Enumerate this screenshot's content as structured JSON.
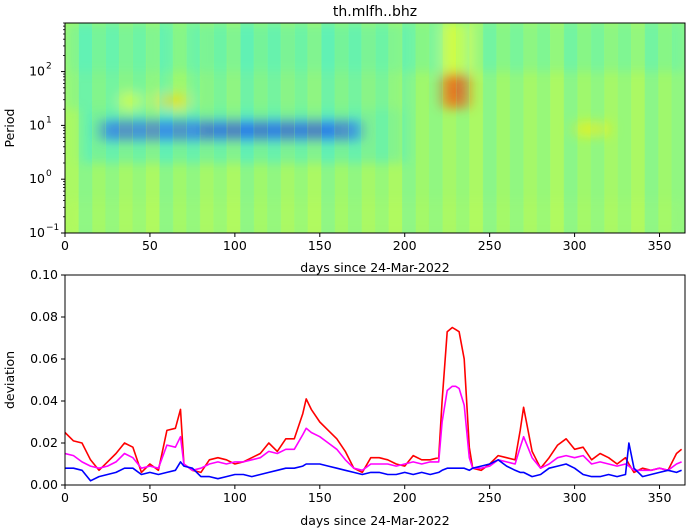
{
  "title": "th.mlfh..bhz",
  "chart_data": [
    {
      "type": "heatmap",
      "title": "th.mlfh..bhz",
      "xlabel": "days since 24-Mar-2022",
      "ylabel": "Period",
      "xlim": [
        0,
        365
      ],
      "ylim": [
        0.1,
        800
      ],
      "yscale": "log",
      "x_ticks": [
        "0",
        "50",
        "100",
        "150",
        "200",
        "250",
        "300",
        "350"
      ],
      "y_ticks": [
        "10",
        "10",
        "10",
        "10"
      ],
      "y_tick_exponents": [
        "−1",
        "0",
        "1",
        "2"
      ],
      "colormap": "jet",
      "features": [
        {
          "x": [
            20,
            175
          ],
          "period": [
            5,
            13
          ],
          "level": "low",
          "color": "#1a5cff"
        },
        {
          "x": [
            222,
            238
          ],
          "period": [
            20,
            100
          ],
          "level": "high",
          "color": "#ff4a00"
        },
        {
          "x": [
            222,
            238
          ],
          "period": [
            100,
            800
          ],
          "level": "elevated",
          "color": "#e8ff2a"
        },
        {
          "x": [
            55,
            72
          ],
          "period": [
            20,
            40
          ],
          "level": "elevated",
          "color": "#f8d800"
        },
        {
          "x": [
            300,
            320
          ],
          "period": [
            6,
            12
          ],
          "level": "elevated",
          "color": "#f4f010"
        },
        {
          "x": [
            33,
            45
          ],
          "period": [
            20,
            40
          ],
          "level": "elevated",
          "color": "#d8ff40"
        }
      ]
    },
    {
      "type": "line",
      "xlabel": "days since 24-Mar-2022",
      "ylabel": "deviation",
      "xlim": [
        0,
        365
      ],
      "ylim": [
        0,
        0.1
      ],
      "x_ticks": [
        "0",
        "50",
        "100",
        "150",
        "200",
        "250",
        "300",
        "350"
      ],
      "y_ticks": [
        "0.00",
        "0.02",
        "0.04",
        "0.06",
        "0.08",
        "0.10"
      ],
      "grid": false,
      "x": [
        0,
        5,
        10,
        15,
        20,
        25,
        30,
        35,
        40,
        45,
        50,
        55,
        60,
        65,
        68,
        70,
        75,
        80,
        85,
        90,
        95,
        100,
        105,
        110,
        115,
        120,
        125,
        130,
        135,
        140,
        142,
        145,
        150,
        155,
        160,
        165,
        170,
        175,
        180,
        185,
        190,
        195,
        200,
        205,
        210,
        215,
        220,
        222,
        225,
        228,
        230,
        232,
        235,
        238,
        240,
        245,
        250,
        255,
        260,
        265,
        268,
        270,
        275,
        280,
        285,
        290,
        295,
        300,
        305,
        310,
        315,
        320,
        325,
        330,
        332,
        335,
        340,
        345,
        350,
        355,
        360,
        363
      ],
      "series": [
        {
          "color": "#ff0000",
          "values": [
            0.025,
            0.021,
            0.02,
            0.012,
            0.007,
            0.011,
            0.015,
            0.02,
            0.018,
            0.006,
            0.01,
            0.007,
            0.026,
            0.027,
            0.036,
            0.01,
            0.007,
            0.006,
            0.012,
            0.013,
            0.012,
            0.01,
            0.011,
            0.013,
            0.015,
            0.02,
            0.016,
            0.022,
            0.022,
            0.034,
            0.041,
            0.036,
            0.03,
            0.026,
            0.022,
            0.016,
            0.008,
            0.006,
            0.013,
            0.013,
            0.012,
            0.01,
            0.009,
            0.014,
            0.012,
            0.012,
            0.013,
            0.04,
            0.073,
            0.075,
            0.074,
            0.073,
            0.06,
            0.018,
            0.008,
            0.007,
            0.01,
            0.014,
            0.013,
            0.012,
            0.026,
            0.037,
            0.016,
            0.008,
            0.013,
            0.019,
            0.022,
            0.017,
            0.018,
            0.012,
            0.015,
            0.013,
            0.01,
            0.013,
            0.01,
            0.006,
            0.008,
            0.007,
            0.008,
            0.007,
            0.015,
            0.017
          ]
        },
        {
          "color": "#ff00ff",
          "values": [
            0.015,
            0.014,
            0.011,
            0.009,
            0.008,
            0.009,
            0.011,
            0.015,
            0.013,
            0.008,
            0.009,
            0.008,
            0.019,
            0.018,
            0.023,
            0.01,
            0.007,
            0.008,
            0.01,
            0.011,
            0.01,
            0.011,
            0.011,
            0.012,
            0.013,
            0.016,
            0.015,
            0.017,
            0.017,
            0.024,
            0.027,
            0.025,
            0.023,
            0.02,
            0.017,
            0.012,
            0.008,
            0.007,
            0.01,
            0.01,
            0.01,
            0.009,
            0.01,
            0.011,
            0.01,
            0.011,
            0.011,
            0.03,
            0.045,
            0.047,
            0.047,
            0.046,
            0.038,
            0.013,
            0.008,
            0.008,
            0.009,
            0.012,
            0.011,
            0.01,
            0.018,
            0.023,
            0.013,
            0.008,
            0.01,
            0.013,
            0.014,
            0.013,
            0.014,
            0.01,
            0.011,
            0.01,
            0.009,
            0.01,
            0.009,
            0.007,
            0.007,
            0.007,
            0.008,
            0.007,
            0.01,
            0.011
          ]
        },
        {
          "color": "#0000ff",
          "values": [
            0.008,
            0.008,
            0.007,
            0.002,
            0.004,
            0.005,
            0.006,
            0.008,
            0.008,
            0.005,
            0.006,
            0.005,
            0.006,
            0.007,
            0.011,
            0.009,
            0.008,
            0.004,
            0.004,
            0.003,
            0.004,
            0.005,
            0.005,
            0.004,
            0.005,
            0.006,
            0.007,
            0.008,
            0.008,
            0.009,
            0.01,
            0.01,
            0.01,
            0.009,
            0.008,
            0.007,
            0.006,
            0.005,
            0.006,
            0.006,
            0.005,
            0.005,
            0.006,
            0.005,
            0.006,
            0.005,
            0.006,
            0.007,
            0.008,
            0.008,
            0.008,
            0.008,
            0.008,
            0.007,
            0.008,
            0.009,
            0.01,
            0.012,
            0.009,
            0.007,
            0.006,
            0.006,
            0.004,
            0.005,
            0.008,
            0.009,
            0.01,
            0.008,
            0.005,
            0.004,
            0.004,
            0.005,
            0.004,
            0.005,
            0.02,
            0.008,
            0.004,
            0.005,
            0.006,
            0.007,
            0.006,
            0.007
          ]
        }
      ]
    }
  ]
}
